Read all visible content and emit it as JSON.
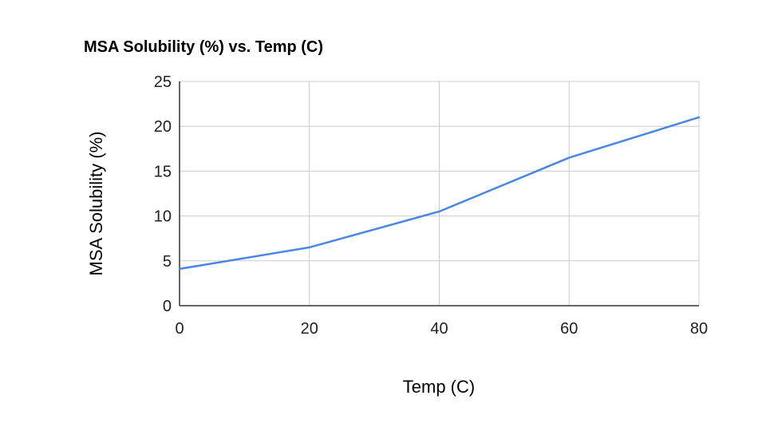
{
  "chart_data": {
    "type": "line",
    "title": "MSA Solubility (%) vs. Temp (C)",
    "xlabel": "Temp (C)",
    "ylabel": "MSA Solubility (%)",
    "xlim": [
      0,
      80
    ],
    "ylim": [
      0,
      25
    ],
    "x_ticks": [
      0,
      20,
      40,
      60,
      80
    ],
    "y_ticks": [
      0,
      5,
      10,
      15,
      20,
      25
    ],
    "grid": true,
    "legend": "none",
    "series": [
      {
        "color": "#4a86e8",
        "points": [
          {
            "x": 0,
            "y": 4.1
          },
          {
            "x": 20,
            "y": 6.5
          },
          {
            "x": 40,
            "y": 10.5
          },
          {
            "x": 60,
            "y": 16.5
          },
          {
            "x": 80,
            "y": 21
          }
        ]
      }
    ]
  }
}
